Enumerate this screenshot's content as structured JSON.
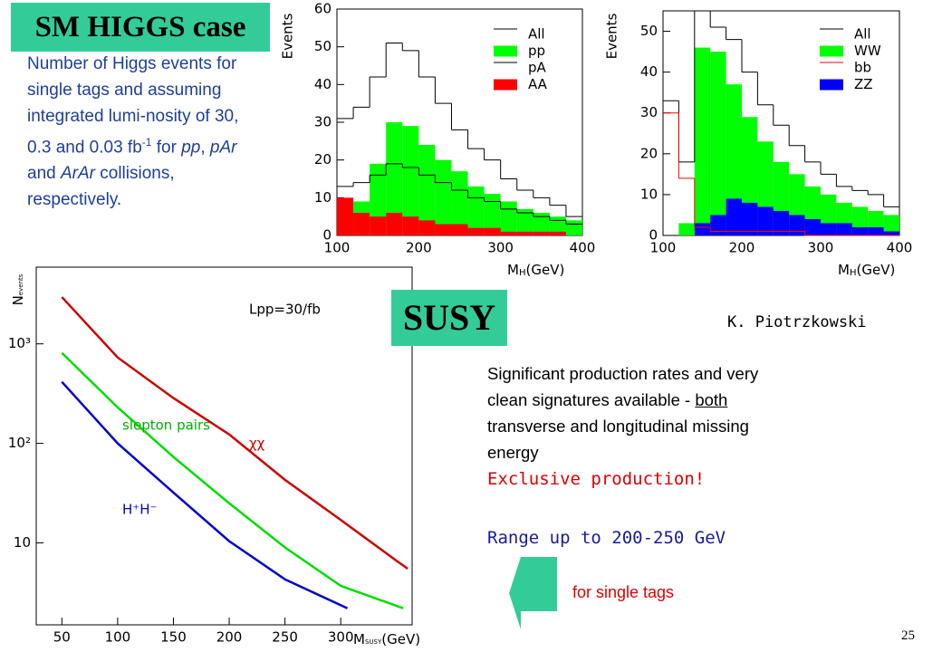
{
  "header": {
    "title": "SM HIGGS case"
  },
  "intro": {
    "parts": [
      "Number of Higgs events for single tags and assuming integrated lumi-nosity of 30, 0.3 and 0.03 fb",
      "-1",
      " for ",
      "pp",
      ", ",
      "pAr",
      " and ",
      "ArAr",
      " collisions, respectively."
    ]
  },
  "susy": {
    "title": "SUSY",
    "author": "K. Piotrzkowski",
    "body": [
      "Significant production rates and very clean signatures available - ",
      "both",
      " transverse and longitudinal missing energy"
    ],
    "highlight": "Exclusive production!",
    "range": "Range up to 200-250 GeV",
    "note": "for single tags"
  },
  "page_number": "25",
  "chart_data": [
    {
      "type": "histogram",
      "ylabel": "Events",
      "xlabel": [
        "M",
        "H",
        "(GeV)"
      ],
      "bins": [
        100,
        120,
        140,
        160,
        180,
        200,
        220,
        240,
        260,
        280,
        300,
        320,
        340,
        360,
        380,
        400
      ],
      "xlim": [
        100,
        400
      ],
      "xticks": [
        100,
        200,
        300,
        400
      ],
      "ylim": [
        0,
        60
      ],
      "yticks": [
        0,
        10,
        20,
        30,
        40,
        50,
        60
      ],
      "series": [
        {
          "name": "All",
          "color": "#000000",
          "filled": false,
          "values": [
            31,
            34,
            42,
            51,
            49,
            42,
            35,
            28,
            23,
            20,
            15,
            12,
            10,
            8,
            5
          ]
        },
        {
          "name": "pp",
          "color": "#00ff00",
          "filled": true,
          "values": [
            6,
            9,
            19,
            30,
            29,
            24,
            20,
            17,
            13,
            11,
            9,
            7,
            6,
            5,
            4
          ]
        },
        {
          "name": "pA",
          "color": "#000000",
          "filled": false,
          "values": [
            13,
            14,
            16,
            19,
            18,
            16,
            14,
            12,
            10,
            9,
            7,
            6,
            5,
            4,
            3
          ]
        },
        {
          "name": "AA",
          "color": "#ff0000",
          "filled": true,
          "values": [
            10,
            6,
            5,
            6,
            5,
            4,
            3,
            3,
            2,
            2,
            1,
            1,
            1,
            1,
            0
          ]
        }
      ]
    },
    {
      "type": "histogram",
      "ylabel": "Events",
      "xlabel": [
        "M",
        "H",
        "(GeV)"
      ],
      "bins": [
        100,
        120,
        140,
        160,
        180,
        200,
        220,
        240,
        260,
        280,
        300,
        320,
        340,
        360,
        380,
        400
      ],
      "xlim": [
        100,
        400
      ],
      "xticks": [
        100,
        200,
        300,
        400
      ],
      "ylim": [
        0,
        55
      ],
      "yticks": [
        0,
        10,
        20,
        30,
        40,
        50
      ],
      "series": [
        {
          "name": "All",
          "color": "#000000",
          "filled": false,
          "values": [
            33,
            18,
            55,
            51,
            48,
            40,
            32,
            27,
            22,
            18,
            15,
            12,
            11,
            10,
            7
          ]
        },
        {
          "name": "WW",
          "color": "#00ff00",
          "filled": true,
          "values": [
            0,
            3,
            46,
            45,
            37,
            29,
            23,
            18,
            15,
            12,
            10,
            8,
            7,
            6,
            5
          ]
        },
        {
          "name": "bb",
          "color": "#ff0000",
          "filled": false,
          "values": [
            30,
            14,
            2,
            1,
            1,
            1,
            1,
            1,
            1,
            0,
            0,
            0,
            0,
            0,
            0
          ]
        },
        {
          "name": "ZZ",
          "color": "#0000ff",
          "filled": true,
          "values": [
            0,
            0,
            3,
            5,
            9,
            8,
            7,
            6,
            5,
            4,
            3,
            3,
            2,
            2,
            1
          ]
        }
      ]
    },
    {
      "type": "line",
      "ylog": true,
      "ylabel": [
        "N",
        "events"
      ],
      "xlabel": [
        "M",
        "SUSY",
        "(GeV)"
      ],
      "xlim": [
        27,
        364
      ],
      "xticks": [
        50,
        100,
        150,
        200,
        250,
        300
      ],
      "ylim": [
        1.5,
        5900
      ],
      "yticks": [
        {
          "value": 10,
          "label": "10"
        },
        {
          "value": 100,
          "label": "10²"
        },
        {
          "value": 1000,
          "label": "10³"
        }
      ],
      "annotations": [
        {
          "text": "Lpp=30/fb",
          "color": "#000000"
        },
        {
          "text": "slepton pairs",
          "color": "#00b000"
        },
        {
          "text": "χχ",
          "color": "#cc0000"
        },
        {
          "text": "H⁺H⁻",
          "color": "#0000cc"
        }
      ],
      "series": [
        {
          "color": "#cc0000",
          "x": [
            50,
            100,
            150,
            200,
            250,
            300,
            350,
            360
          ],
          "values": [
            2950,
            730,
            285,
            123,
            43,
            17,
            6.6,
            5.5
          ]
        },
        {
          "color": "#00dd00",
          "x": [
            50,
            100,
            150,
            200,
            250,
            300,
            356
          ],
          "values": [
            810,
            230,
            73,
            25,
            9,
            3.7,
            2.2
          ]
        },
        {
          "color": "#0000cc",
          "x": [
            50,
            100,
            150,
            200,
            250,
            306
          ],
          "values": [
            415,
            100,
            32,
            10.4,
            4.3,
            2.2
          ]
        }
      ]
    }
  ]
}
